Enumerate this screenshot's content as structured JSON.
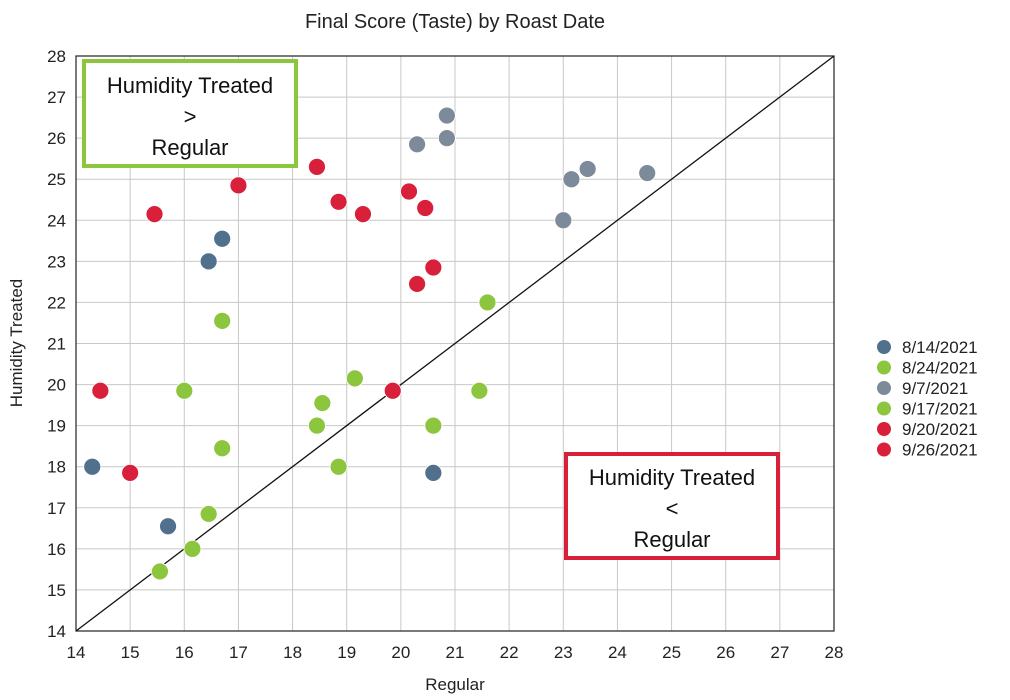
{
  "chart_data": {
    "type": "scatter",
    "title": "Final Score (Taste) by Roast Date",
    "xlabel": "Regular",
    "ylabel": "Humidity Treated",
    "xlim": [
      14,
      28
    ],
    "ylim": [
      14,
      28
    ],
    "xticks": [
      "14",
      "15",
      "16",
      "17",
      "18",
      "19",
      "20",
      "21",
      "22",
      "23",
      "24",
      "25",
      "26",
      "27",
      "28"
    ],
    "yticks": [
      "14",
      "15",
      "16",
      "17",
      "18",
      "19",
      "20",
      "21",
      "22",
      "23",
      "24",
      "25",
      "26",
      "27",
      "28"
    ],
    "grid": true,
    "reference_line": "y = x",
    "legend_position": "right",
    "annotations": [
      {
        "id": "above",
        "lines": [
          "Humidity Treated",
          ">",
          "Regular"
        ],
        "color": "#8cc63f",
        "position": "top-left"
      },
      {
        "id": "below",
        "lines": [
          "Humidity Treated",
          "<",
          "Regular"
        ],
        "color": "#d9203a",
        "position": "bottom-right"
      }
    ],
    "series": [
      {
        "name": "8/14/2021",
        "color": "#51708e",
        "points": [
          [
            14.3,
            18.0
          ],
          [
            15.7,
            16.55
          ],
          [
            16.45,
            23.0
          ],
          [
            16.7,
            23.55
          ],
          [
            20.6,
            17.85
          ]
        ]
      },
      {
        "name": "8/24/2021",
        "color": "#8cc63f",
        "points": []
      },
      {
        "name": "9/7/2021",
        "color": "#7c8a99",
        "points": [
          [
            20.3,
            25.85
          ],
          [
            20.85,
            26.55
          ],
          [
            20.85,
            26.0
          ],
          [
            23.0,
            24.0
          ],
          [
            23.15,
            25.0
          ],
          [
            23.45,
            25.25
          ],
          [
            24.55,
            25.15
          ]
        ]
      },
      {
        "name": "9/17/2021",
        "color": "#8cc63f",
        "points": [
          [
            15.55,
            15.45
          ],
          [
            16.0,
            19.85
          ],
          [
            16.15,
            16.0
          ],
          [
            16.45,
            16.85
          ],
          [
            16.7,
            21.55
          ],
          [
            16.7,
            18.45
          ],
          [
            18.45,
            19.0
          ],
          [
            18.55,
            19.55
          ],
          [
            18.85,
            18.0
          ],
          [
            19.15,
            20.15
          ],
          [
            20.6,
            19.0
          ],
          [
            21.45,
            19.85
          ],
          [
            21.6,
            22.0
          ]
        ]
      },
      {
        "name": "9/20/2021",
        "color": "#d9203a",
        "points": []
      },
      {
        "name": "9/26/2021",
        "color": "#d9203a",
        "points": [
          [
            14.45,
            19.85
          ],
          [
            15.0,
            17.85
          ],
          [
            15.45,
            24.15
          ],
          [
            17.0,
            24.85
          ],
          [
            18.45,
            25.3
          ],
          [
            18.85,
            24.45
          ],
          [
            19.3,
            24.15
          ],
          [
            19.85,
            19.85
          ],
          [
            20.15,
            24.7
          ],
          [
            20.3,
            22.45
          ],
          [
            20.45,
            24.3
          ],
          [
            20.6,
            22.85
          ]
        ]
      }
    ]
  }
}
